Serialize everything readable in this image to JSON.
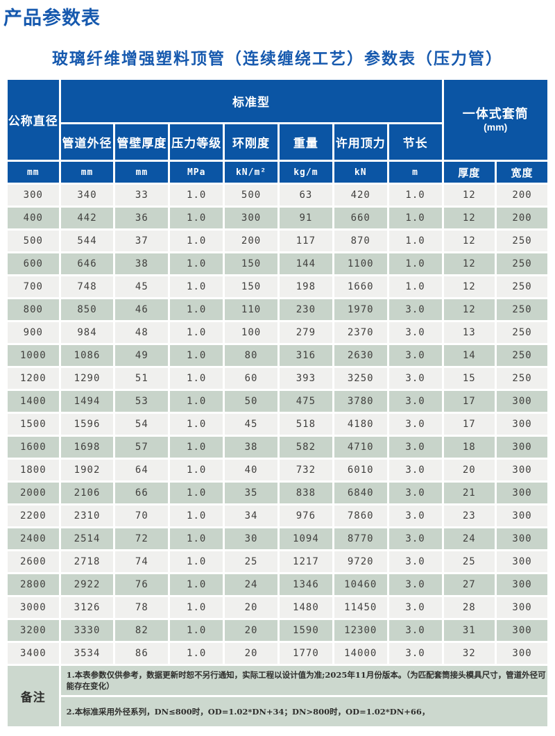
{
  "page": {
    "title": "产品参数表",
    "subtitle": "玻璃纤维增强塑料顶管（连续缠绕工艺）参数表（压力管）"
  },
  "colors": {
    "header_blue": "#0b55a4",
    "title_blue": "#1659ae",
    "row_light": "#f0f0ee",
    "row_green": "#c8d4ca",
    "remark_bg": "#ccd8ce"
  },
  "table": {
    "header": {
      "nominal_diameter": "公称直径",
      "standard_group": "标准型",
      "sleeve_group_line1": "一体式套筒",
      "sleeve_group_line2": "(mm)",
      "sub_columns": [
        "管道外径",
        "管壁厚度",
        "压力等级",
        "环刚度",
        "重量",
        "许用顶力",
        "节长"
      ],
      "units": [
        "mm",
        "mm",
        "mm",
        "MPa",
        "kN/m²",
        "kg/m",
        "kN",
        "m"
      ],
      "sleeve_columns": [
        "厚度",
        "宽度"
      ]
    },
    "rows": [
      [
        "300",
        "340",
        "33",
        "1.0",
        "500",
        "63",
        "420",
        "1.0",
        "12",
        "200"
      ],
      [
        "400",
        "442",
        "36",
        "1.0",
        "300",
        "91",
        "660",
        "1.0",
        "12",
        "200"
      ],
      [
        "500",
        "544",
        "37",
        "1.0",
        "200",
        "117",
        "870",
        "1.0",
        "12",
        "250"
      ],
      [
        "600",
        "646",
        "38",
        "1.0",
        "150",
        "144",
        "1100",
        "1.0",
        "12",
        "250"
      ],
      [
        "700",
        "748",
        "45",
        "1.0",
        "150",
        "198",
        "1660",
        "1.0",
        "12",
        "250"
      ],
      [
        "800",
        "850",
        "46",
        "1.0",
        "110",
        "230",
        "1970",
        "3.0",
        "12",
        "250"
      ],
      [
        "900",
        "984",
        "48",
        "1.0",
        "100",
        "279",
        "2370",
        "3.0",
        "13",
        "250"
      ],
      [
        "1000",
        "1086",
        "49",
        "1.0",
        "80",
        "316",
        "2630",
        "3.0",
        "14",
        "250"
      ],
      [
        "1200",
        "1290",
        "51",
        "1.0",
        "60",
        "393",
        "3250",
        "3.0",
        "15",
        "250"
      ],
      [
        "1400",
        "1494",
        "53",
        "1.0",
        "50",
        "475",
        "3780",
        "3.0",
        "17",
        "300"
      ],
      [
        "1500",
        "1596",
        "54",
        "1.0",
        "45",
        "518",
        "4180",
        "3.0",
        "17",
        "300"
      ],
      [
        "1600",
        "1698",
        "57",
        "1.0",
        "38",
        "582",
        "4710",
        "3.0",
        "18",
        "300"
      ],
      [
        "1800",
        "1902",
        "64",
        "1.0",
        "40",
        "732",
        "6010",
        "3.0",
        "20",
        "300"
      ],
      [
        "2000",
        "2106",
        "66",
        "1.0",
        "35",
        "838",
        "6840",
        "3.0",
        "21",
        "300"
      ],
      [
        "2200",
        "2310",
        "70",
        "1.0",
        "34",
        "976",
        "7860",
        "3.0",
        "23",
        "300"
      ],
      [
        "2400",
        "2514",
        "72",
        "1.0",
        "30",
        "1094",
        "8770",
        "3.0",
        "24",
        "300"
      ],
      [
        "2600",
        "2718",
        "74",
        "1.0",
        "25",
        "1217",
        "9720",
        "3.0",
        "25",
        "300"
      ],
      [
        "2800",
        "2922",
        "76",
        "1.0",
        "24",
        "1346",
        "10460",
        "3.0",
        "27",
        "300"
      ],
      [
        "3000",
        "3126",
        "78",
        "1.0",
        "20",
        "1480",
        "11450",
        "3.0",
        "28",
        "300"
      ],
      [
        "3200",
        "3330",
        "82",
        "1.0",
        "20",
        "1590",
        "12300",
        "3.0",
        "31",
        "300"
      ],
      [
        "3400",
        "3534",
        "86",
        "1.0",
        "20",
        "1770",
        "14000",
        "3.0",
        "32",
        "300"
      ]
    ],
    "remarks": {
      "label": "备注",
      "items": [
        "1.本表参数仅供参考，数据更新时恕不另行通知，实际工程以设计值为准;2025年11月份版本。（为匹配套筒接头模具尺寸，管道外径可能存在变化）",
        "2.本标准采用外径系列，DN≤800时，OD=1.02*DN+34；DN>800时，OD=1.02*DN+66，"
      ]
    }
  }
}
